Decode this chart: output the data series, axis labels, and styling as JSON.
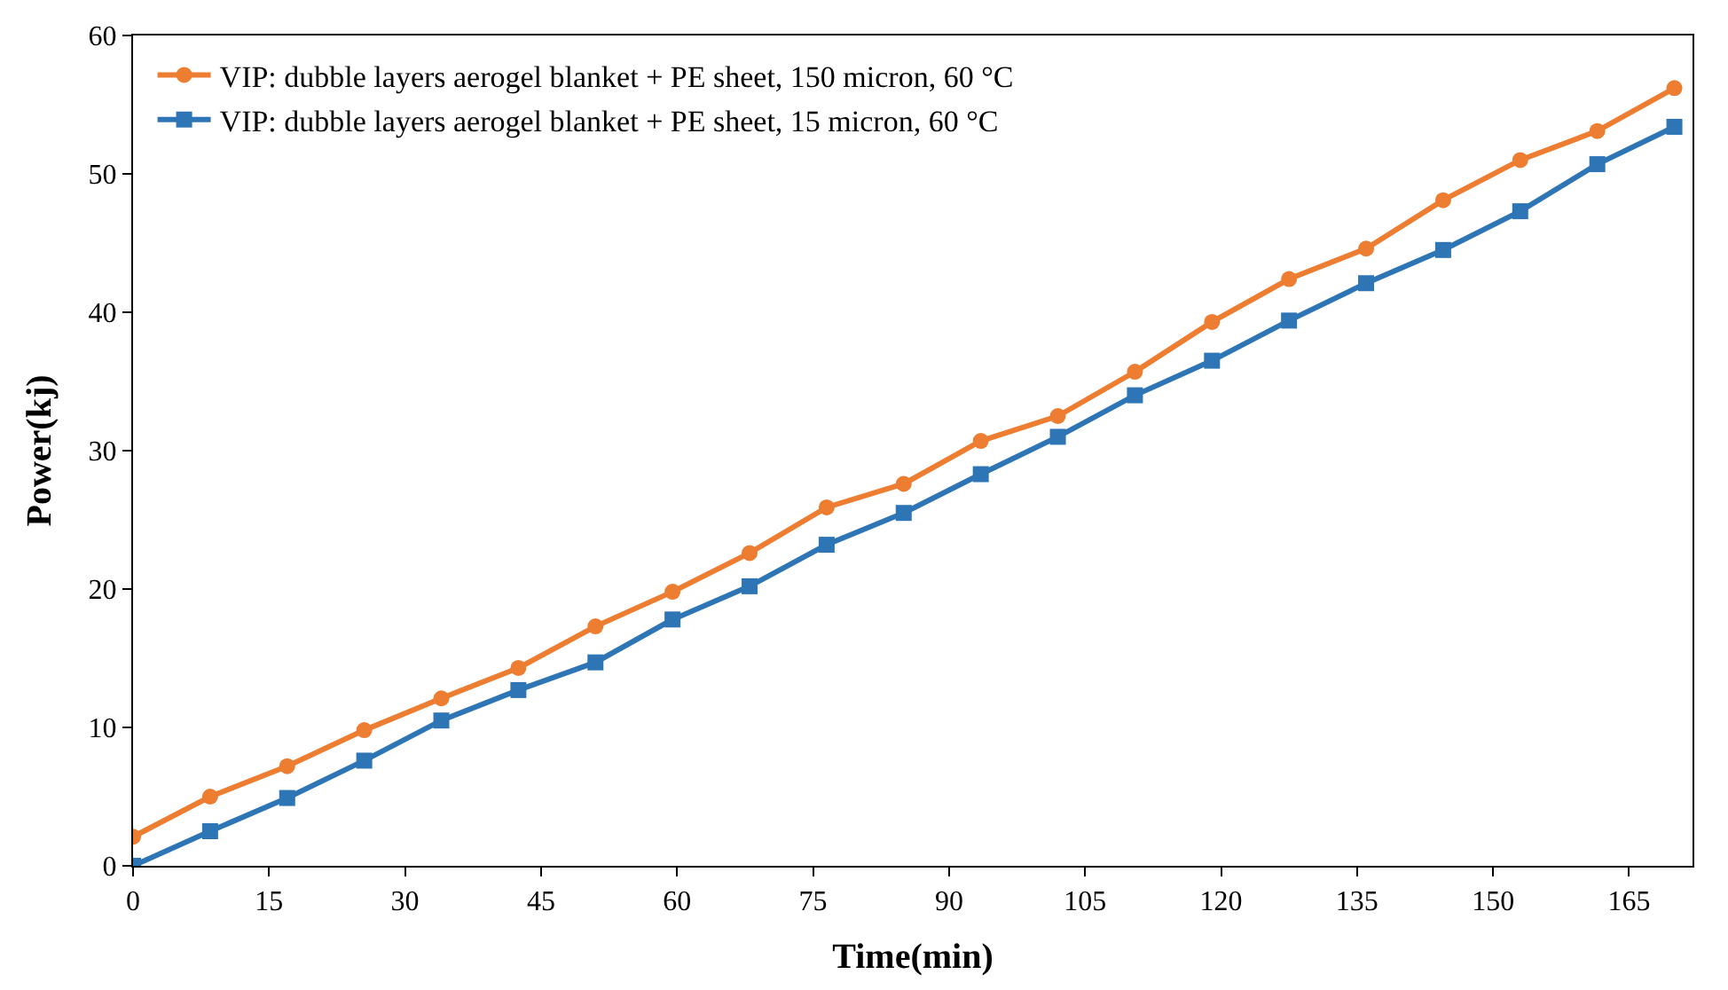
{
  "chart_data": {
    "type": "line",
    "xlabel": "Time(min)",
    "ylabel": "Power(kj)",
    "x": [
      0,
      8.5,
      17,
      25.5,
      34,
      42.5,
      51,
      59.5,
      68,
      76.5,
      85,
      93.5,
      102,
      110.5,
      119,
      127.5,
      136,
      144.5,
      153,
      161.5,
      170
    ],
    "xlim": [
      0,
      172
    ],
    "xticks": [
      0,
      15,
      30,
      45,
      60,
      75,
      90,
      105,
      120,
      135,
      150,
      165
    ],
    "ylim": [
      0,
      60
    ],
    "yticks": [
      0,
      10,
      20,
      30,
      40,
      50,
      60
    ],
    "legend": "top left",
    "series": [
      {
        "name": "VIP: dubble layers aerogel blanket + PE sheet, 150 micron, 60 °C",
        "color": "#ed7d31",
        "marker": "circle",
        "values": [
          2.1,
          5.0,
          7.2,
          9.8,
          12.1,
          14.3,
          17.3,
          19.8,
          22.6,
          25.9,
          27.6,
          30.7,
          32.5,
          35.7,
          39.3,
          42.4,
          44.6,
          48.1,
          51.0,
          53.1,
          56.2
        ]
      },
      {
        "name": "VIP: dubble layers aerogel blanket + PE sheet, 15 micron, 60 °C",
        "color": "#2e75b6",
        "marker": "square",
        "values": [
          0,
          2.5,
          4.9,
          7.6,
          10.5,
          12.7,
          14.7,
          17.8,
          20.2,
          23.2,
          25.5,
          28.3,
          31.0,
          34.0,
          36.5,
          39.4,
          42.1,
          44.5,
          47.3,
          50.7,
          53.4
        ]
      }
    ]
  }
}
